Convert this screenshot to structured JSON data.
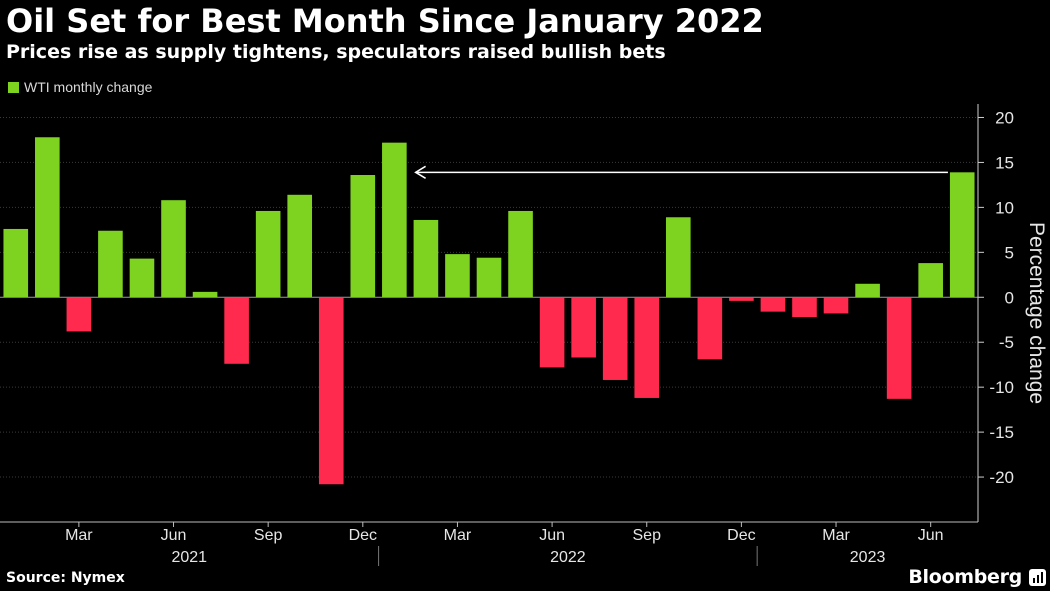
{
  "header": {
    "title": "Oil Set for Best Month Since January 2022",
    "subtitle": "Prices rise as supply tightens, speculators raised bullish bets"
  },
  "legend": {
    "label": "WTI monthly change"
  },
  "footer": {
    "source": "Source: Nymex",
    "brand": "Bloomberg"
  },
  "colors": {
    "positive": "#7ed321",
    "negative": "#ff2a4d",
    "grid": "#3a3a3a",
    "axis": "#cfcfcf",
    "arrow": "#ffffff"
  },
  "chart_data": {
    "type": "bar",
    "title": "Oil Set for Best Month Since January 2022",
    "subtitle": "Prices rise as supply tightens, speculators raised bullish bets",
    "ylabel": "Percentage change",
    "ylim": [
      -25,
      21.5
    ],
    "yticks": [
      20,
      15,
      10,
      5,
      0,
      -5,
      -10,
      -15,
      -20
    ],
    "ytick_labels": [
      "20",
      "15",
      "10",
      "5",
      "0",
      "-5",
      "-10",
      "-15",
      "-20"
    ],
    "categories": [
      "Jan 2021",
      "Feb 2021",
      "Mar 2021",
      "Apr 2021",
      "May 2021",
      "Jun 2021",
      "Jul 2021",
      "Aug 2021",
      "Sep 2021",
      "Oct 2021",
      "Nov 2021",
      "Dec 2021",
      "Jan 2022",
      "Feb 2022",
      "Mar 2022",
      "Apr 2022",
      "May 2022",
      "Jun 2022",
      "Jul 2022",
      "Aug 2022",
      "Sep 2022",
      "Oct 2022",
      "Nov 2022",
      "Dec 2022",
      "Jan 2023",
      "Feb 2023",
      "Mar 2023",
      "Apr 2023",
      "May 2023",
      "Jun 2023",
      "Jul 2023"
    ],
    "values": [
      7.6,
      17.8,
      -3.8,
      7.4,
      4.3,
      10.8,
      0.6,
      -7.4,
      9.6,
      11.4,
      -20.8,
      13.6,
      17.2,
      8.6,
      4.8,
      4.4,
      9.6,
      -7.8,
      -6.7,
      -9.2,
      -11.2,
      8.9,
      -6.9,
      -0.4,
      -1.6,
      -2.2,
      -1.8,
      1.5,
      -11.3,
      3.8,
      13.9
    ],
    "xtick_labels": [
      {
        "label": "Mar",
        "month_index": 2
      },
      {
        "label": "Jun",
        "month_index": 5
      },
      {
        "label": "Sep",
        "month_index": 8
      },
      {
        "label": "Dec",
        "month_index": 11
      },
      {
        "label": "Mar",
        "month_index": 14
      },
      {
        "label": "Jun",
        "month_index": 17
      },
      {
        "label": "Sep",
        "month_index": 20
      },
      {
        "label": "Dec",
        "month_index": 23
      },
      {
        "label": "Mar",
        "month_index": 26
      },
      {
        "label": "Jun",
        "month_index": 29
      }
    ],
    "year_labels": [
      {
        "label": "2021",
        "from_index": 0,
        "to_index": 11
      },
      {
        "label": "2022",
        "from_index": 12,
        "to_index": 23
      },
      {
        "label": "2023",
        "from_index": 24,
        "to_index": 30
      }
    ],
    "annotations": [
      {
        "type": "arrow",
        "from_index": 30,
        "to_index": 13,
        "y_value": 13.9
      }
    ],
    "grid": true,
    "legend_position": "top-left"
  }
}
